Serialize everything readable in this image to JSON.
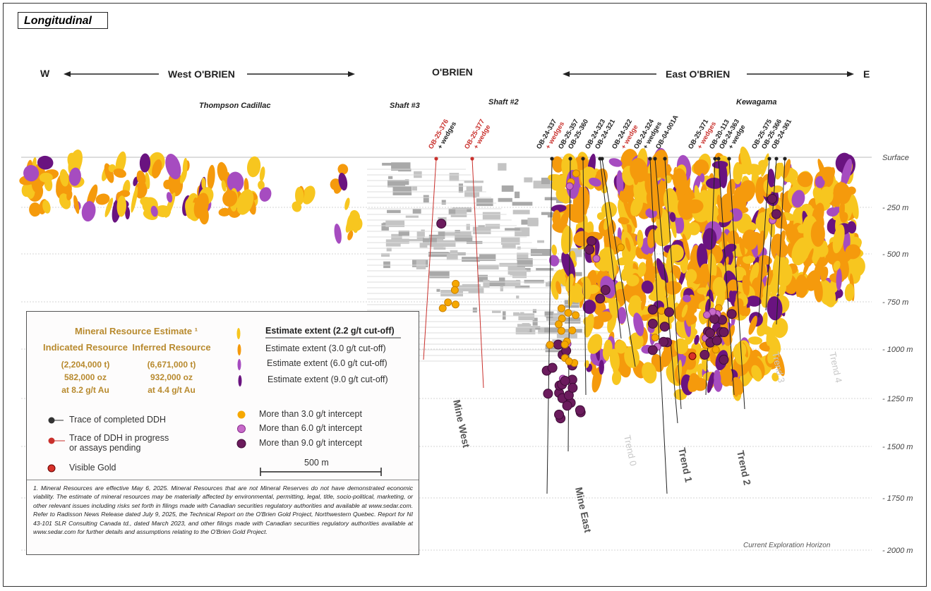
{
  "title": "Longitudinal",
  "directions": {
    "west_letter": "W",
    "east_letter": "E",
    "west": "West O'BRIEN",
    "center": "O'BRIEN",
    "east": "East O'BRIEN"
  },
  "locations": [
    "Thompson Cadillac",
    "Shaft #3",
    "Shaft #2",
    "Kewagama"
  ],
  "depth_labels": [
    "Surface",
    "- 250 m",
    "- 500 m",
    "- 750 m",
    "- 1000 m",
    "- 1250 m",
    "- 1500 m",
    "- 1750 m",
    "- 2000 m"
  ],
  "drill_holes": [
    {
      "id": "OB-25-376",
      "suffix": "+ wedges",
      "status": "in-progress"
    },
    {
      "id": "OB-25-377",
      "suffix": "+ wedge",
      "status": "in-progress"
    },
    {
      "id": "OB-24-337",
      "suffix": "+ wedges",
      "status": "completed"
    },
    {
      "id": "OB-25-357",
      "suffix": "",
      "status": "completed"
    },
    {
      "id": "OB-25-360",
      "suffix": "",
      "status": "completed"
    },
    {
      "id": "OB-24-323",
      "suffix": "",
      "status": "completed"
    },
    {
      "id": "OB-24-321",
      "suffix": "",
      "status": "completed"
    },
    {
      "id": "OB-24-322",
      "suffix": "+ wedge",
      "status": "completed"
    },
    {
      "id": "OB-24-324",
      "suffix": "+ wedges",
      "status": "completed"
    },
    {
      "id": "OB-04-001A",
      "suffix": "",
      "status": "completed"
    },
    {
      "id": "OB-25-371",
      "suffix": "+ wedges",
      "status": "completed"
    },
    {
      "id": "OB-20-113",
      "suffix": "",
      "status": "completed"
    },
    {
      "id": "OB-24-363",
      "suffix": "+ wedge",
      "status": "completed"
    },
    {
      "id": "OB-25-375",
      "suffix": "",
      "status": "completed"
    },
    {
      "id": "OB-25-366",
      "suffix": "",
      "status": "completed"
    },
    {
      "id": "OB-24-361",
      "suffix": "",
      "status": "completed"
    }
  ],
  "zones": {
    "mine_west": "Mine West",
    "mine_east": "Mine East",
    "trend0": "Trend 0",
    "trend1": "Trend 1",
    "trend2": "Trend 2",
    "trend3": "Trend 3",
    "trend4": "Trend 4",
    "horizon": "Current Exploration Horizon"
  },
  "colors": {
    "cutoff_2_2": "#f7c61f",
    "cutoff_3_0": "#f59a0c",
    "cutoff_6_0": "#a64cc0",
    "cutoff_9_0": "#6a1380",
    "workings": "#a9a9a9",
    "in_progress": "#c9302c",
    "completed": "#222222",
    "legend_gold": "#b88a2e"
  },
  "legend": {
    "mre_title": "Mineral Resource Estimate ¹",
    "indicated": {
      "label": "Indicated Resource",
      "tonnes": "(2,204,000 t)",
      "ounces": "582,000 oz",
      "grade": "at 8.2 g/t Au"
    },
    "inferred": {
      "label": "Inferred Resource",
      "tonnes": "(6,671,000 t)",
      "ounces": "932,000 oz",
      "grade": "at 4.4 g/t Au"
    },
    "extents": [
      "Estimate extent (2.2  g/t cut-off)",
      "Estimate extent (3.0  g/t cut-off)",
      "Estimate extent (6.0 g/t cut-off)",
      "Estimate extent (9.0 g/t cut-off)"
    ],
    "ddh_completed": "Trace of completed DDH",
    "ddh_progress_1": "Trace of DDH in progress",
    "ddh_progress_2": "or assays pending",
    "visible_gold": "Visible Gold",
    "intercepts": [
      "More than 3.0 g/t intercept",
      "More than 6.0 g/t intercept",
      "More than 9.0 g/t intercept"
    ],
    "scale": "500 m",
    "note": "1. Mineral Resources are effective May 6, 2025. Mineral Resources that are not Mineral Reserves do not have demonstrated economic viability. The estimate of mineral resources may be materially affected by environmental, permitting, legal, title, socio-political, marketing, or other relevant issues including risks set forth in filings made with Canadian securities regulatory authorities and available at www.sedar.com. Refer to Radisson News Release dated July 9, 2025, the Technical Report on the O'Brien Gold Project, Northwestern Quebec. Report for NI 43-101 SLR Consulting Canada td., dated March 2023, and other filings made with Canadian securities regulatory authorities available at www.sedar.com for further details and assumptions relating to the O'Brien Gold Project."
  }
}
